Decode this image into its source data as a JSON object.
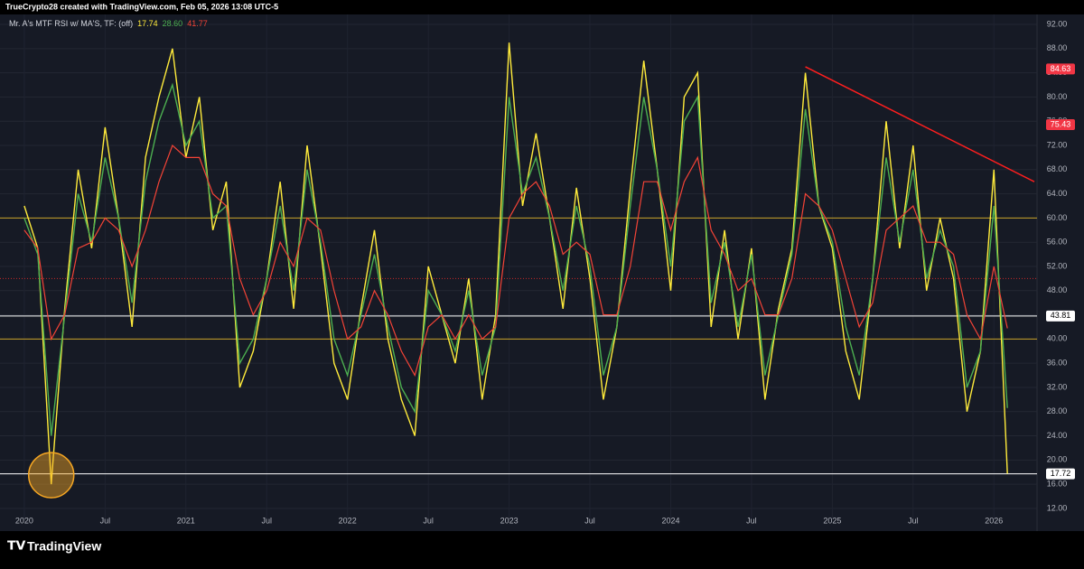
{
  "header": "TrueCrypto28 created with TradingView.com, Feb 05, 2026 13:08 UTC-5",
  "footer": "TradingView",
  "chart_data": {
    "type": "line",
    "indicator": "Mr. A's MTF RSI w/ MA'S, TF: (off)",
    "x": [
      "2020-01",
      "2020-02",
      "2020-03",
      "2020-04",
      "2020-05",
      "2020-06",
      "2020-07",
      "2020-08",
      "2020-09",
      "2020-10",
      "2020-11",
      "2020-12",
      "2021-01",
      "2021-02",
      "2021-03",
      "2021-04",
      "2021-05",
      "2021-06",
      "2021-07",
      "2021-08",
      "2021-09",
      "2021-10",
      "2021-11",
      "2021-12",
      "2022-01",
      "2022-02",
      "2022-03",
      "2022-04",
      "2022-05",
      "2022-06",
      "2022-07",
      "2022-08",
      "2022-09",
      "2022-10",
      "2022-11",
      "2022-12",
      "2023-01",
      "2023-02",
      "2023-03",
      "2023-04",
      "2023-05",
      "2023-06",
      "2023-07",
      "2023-08",
      "2023-09",
      "2023-10",
      "2023-11",
      "2023-12",
      "2024-01",
      "2024-02",
      "2024-03",
      "2024-04",
      "2024-05",
      "2024-06",
      "2024-07",
      "2024-08",
      "2024-09",
      "2024-10",
      "2024-11",
      "2024-12",
      "2025-01",
      "2025-02",
      "2025-03",
      "2025-04",
      "2025-05",
      "2025-06",
      "2025-07",
      "2025-08",
      "2025-09",
      "2025-10",
      "2025-11",
      "2025-12",
      "2026-01",
      "2026-02"
    ],
    "series": [
      {
        "color": "#ffeb3b",
        "readout": "17.74",
        "values": [
          62,
          55,
          16,
          45,
          68,
          55,
          75,
          60,
          42,
          70,
          80,
          88,
          70,
          80,
          58,
          66,
          32,
          38,
          50,
          66,
          45,
          72,
          55,
          36,
          30,
          45,
          58,
          40,
          30,
          24,
          52,
          44,
          36,
          50,
          30,
          44,
          89,
          62,
          74,
          60,
          45,
          65,
          50,
          30,
          42,
          65,
          86,
          68,
          48,
          80,
          84,
          42,
          58,
          40,
          55,
          30,
          45,
          55,
          84,
          62,
          55,
          38,
          30,
          50,
          76,
          55,
          72,
          48,
          60,
          50,
          28,
          38,
          68,
          17.74
        ]
      },
      {
        "color": "#4caf50",
        "readout": "28.60",
        "values": [
          60,
          54,
          24,
          44,
          64,
          56,
          70,
          60,
          46,
          66,
          76,
          82,
          72,
          76,
          60,
          62,
          36,
          40,
          50,
          62,
          48,
          68,
          56,
          40,
          34,
          44,
          54,
          42,
          32,
          28,
          48,
          44,
          38,
          48,
          34,
          42,
          80,
          64,
          70,
          60,
          48,
          62,
          52,
          34,
          42,
          62,
          80,
          68,
          52,
          76,
          80,
          46,
          56,
          42,
          54,
          34,
          44,
          54,
          78,
          62,
          56,
          42,
          34,
          50,
          70,
          56,
          68,
          50,
          58,
          52,
          32,
          38,
          62,
          28.6
        ]
      },
      {
        "color": "#f44336",
        "readout": "41.77",
        "values": [
          58,
          55,
          40,
          44,
          55,
          56,
          60,
          58,
          52,
          58,
          66,
          72,
          70,
          70,
          64,
          62,
          50,
          44,
          48,
          56,
          52,
          60,
          58,
          48,
          40,
          42,
          48,
          44,
          38,
          34,
          42,
          44,
          40,
          44,
          40,
          42,
          60,
          64,
          66,
          62,
          54,
          56,
          54,
          44,
          44,
          52,
          66,
          66,
          58,
          66,
          70,
          58,
          54,
          48,
          50,
          44,
          44,
          50,
          64,
          62,
          58,
          50,
          42,
          46,
          58,
          60,
          62,
          56,
          56,
          54,
          44,
          40,
          52,
          41.77
        ]
      }
    ],
    "xlim": [
      "2019-12",
      "2026-04"
    ],
    "xticks": [
      {
        "value": "2020-01",
        "label": "2020"
      },
      {
        "value": "2020-07",
        "label": "Jul"
      },
      {
        "value": "2021-01",
        "label": "2021"
      },
      {
        "value": "2021-07",
        "label": "Jul"
      },
      {
        "value": "2022-01",
        "label": "2022"
      },
      {
        "value": "2022-07",
        "label": "Jul"
      },
      {
        "value": "2023-01",
        "label": "2023"
      },
      {
        "value": "2023-07",
        "label": "Jul"
      },
      {
        "value": "2024-01",
        "label": "2024"
      },
      {
        "value": "2024-07",
        "label": "Jul"
      },
      {
        "value": "2025-01",
        "label": "2025"
      },
      {
        "value": "2025-07",
        "label": "Jul"
      },
      {
        "value": "2026-01",
        "label": "2026"
      }
    ],
    "ylim": [
      10.2,
      93.05
    ],
    "yticks": [
      {
        "value": 12,
        "label": "12.00"
      },
      {
        "value": 16,
        "label": "16.00"
      },
      {
        "value": 20,
        "label": "20.00"
      },
      {
        "value": 24,
        "label": "24.00"
      },
      {
        "value": 28,
        "label": "28.00"
      },
      {
        "value": 32,
        "label": "32.00"
      },
      {
        "value": 36,
        "label": "36.00"
      },
      {
        "value": 40,
        "label": "40.00"
      },
      {
        "value": 44,
        "label": "44.00"
      },
      {
        "value": 48,
        "label": "48.00"
      },
      {
        "value": 52,
        "label": "52.00"
      },
      {
        "value": 56,
        "label": "56.00"
      },
      {
        "value": 60,
        "label": "60.00"
      },
      {
        "value": 64,
        "label": "64.00"
      },
      {
        "value": 68,
        "label": "68.00"
      },
      {
        "value": 72,
        "label": "72.00"
      },
      {
        "value": 76,
        "label": "76.00"
      },
      {
        "value": 80,
        "label": "80.00"
      },
      {
        "value": 84,
        "label": "84.00"
      },
      {
        "value": 88,
        "label": "88.00"
      },
      {
        "value": 92,
        "label": "92.00"
      }
    ],
    "hlines": [
      {
        "value": 60,
        "color": "#c9a227"
      },
      {
        "value": 50,
        "color": "#c62828",
        "dashed": true
      },
      {
        "value": 40,
        "color": "#c9a227"
      },
      {
        "value": 43.81,
        "color": "#ffffff",
        "label": "43.81"
      },
      {
        "value": 17.72,
        "color": "#ffffff",
        "label": "17.72"
      }
    ],
    "price_labels": [
      {
        "value": 84.63,
        "label": "84.63",
        "color": "#f23645"
      },
      {
        "value": 75.43,
        "label": "75.43",
        "color": "#f23645"
      }
    ],
    "trendline": {
      "x": [
        "2024-11",
        "2026-04"
      ],
      "y": [
        85,
        66
      ],
      "color": "#ff1e1e"
    },
    "highlight": {
      "x": "2020-03",
      "y": 17.5,
      "color": "#f5a623"
    }
  }
}
